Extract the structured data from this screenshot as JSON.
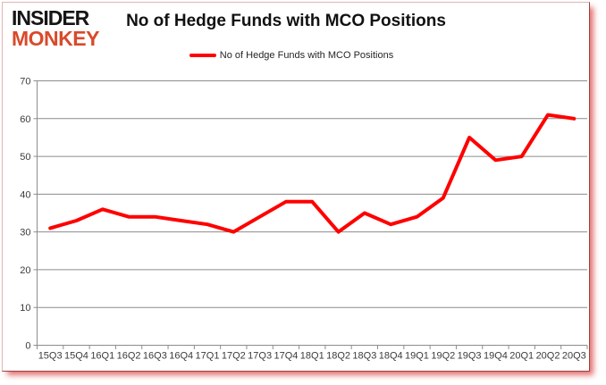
{
  "logo": {
    "line1": "INSIDER",
    "line2": "MONKEY"
  },
  "header": {
    "title": "No of Hedge Funds with MCO Positions"
  },
  "legend": {
    "label": "No of Hedge Funds with MCO Positions"
  },
  "colors": {
    "line": "#ff0000",
    "logo_red": "#d94a2a",
    "grid": "#8c8c8c",
    "axis_line": "#8c8c8c",
    "tick_text": "#3b3b3b",
    "title_text": "#111111"
  },
  "chart_data": {
    "type": "line",
    "title": "No of Hedge Funds with MCO Positions",
    "categories": [
      "15Q3",
      "15Q4",
      "16Q1",
      "16Q2",
      "16Q3",
      "16Q4",
      "17Q1",
      "17Q2",
      "17Q3",
      "17Q4",
      "18Q1",
      "18Q2",
      "18Q3",
      "18Q4",
      "19Q1",
      "19Q2",
      "19Q3",
      "19Q4",
      "20Q1",
      "20Q2",
      "20Q3"
    ],
    "series": [
      {
        "name": "No of Hedge Funds with MCO Positions",
        "color": "#ff0000",
        "values": [
          31,
          33,
          36,
          34,
          34,
          33,
          32,
          30,
          34,
          38,
          38,
          30,
          35,
          32,
          34,
          39,
          55,
          49,
          50,
          61,
          60
        ]
      }
    ],
    "xlabel": "",
    "ylabel": "",
    "ylim": [
      0,
      70
    ],
    "ytick_step": 10,
    "grid": true,
    "legend_position": "top-center"
  }
}
